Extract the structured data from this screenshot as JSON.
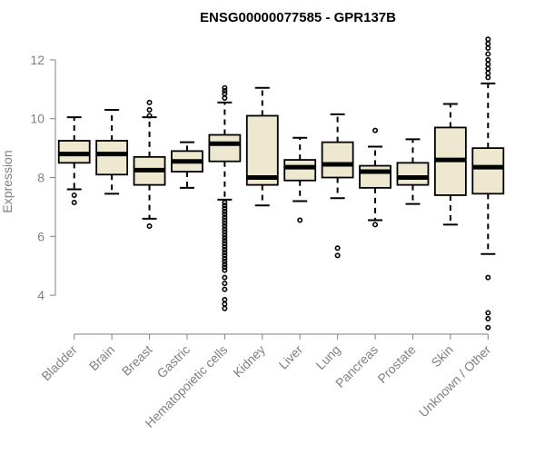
{
  "chart_data": {
    "type": "boxplot",
    "title": "ENSG00000077585 - GPR137B",
    "xlabel": "",
    "ylabel": "Expression",
    "ylim": [
      2.8,
      12.8
    ],
    "yticks": [
      4,
      6,
      8,
      10,
      12
    ],
    "box_fill": "#efe8d0",
    "box_stroke": "#000000",
    "categories": [
      "Bladder",
      "Brain",
      "Breast",
      "Gastric",
      "Hematopoietic cells",
      "Kidney",
      "Liver",
      "Lung",
      "Pancreas",
      "Prostate",
      "Skin",
      "Unknown / Other"
    ],
    "boxes": [
      {
        "q1": 8.5,
        "median": 8.8,
        "q3": 9.25,
        "whisker_low": 7.6,
        "whisker_high": 10.05,
        "outliers": [
          7.4,
          7.15
        ]
      },
      {
        "q1": 8.1,
        "median": 8.8,
        "q3": 9.25,
        "whisker_low": 7.45,
        "whisker_high": 10.3,
        "outliers": []
      },
      {
        "q1": 7.75,
        "median": 8.25,
        "q3": 8.7,
        "whisker_low": 6.6,
        "whisker_high": 10.05,
        "outliers": [
          10.55,
          10.3,
          10.1,
          6.35
        ]
      },
      {
        "q1": 8.2,
        "median": 8.55,
        "q3": 8.9,
        "whisker_low": 7.65,
        "whisker_high": 9.2,
        "outliers": []
      },
      {
        "q1": 8.55,
        "median": 9.15,
        "q3": 9.45,
        "whisker_low": 7.25,
        "whisker_high": 10.55,
        "outliers": [
          11.05,
          10.95,
          10.85,
          10.7,
          7.15,
          7.05,
          6.95,
          6.85,
          6.75,
          6.65,
          6.55,
          6.45,
          6.35,
          6.25,
          6.15,
          6.05,
          5.95,
          5.85,
          5.75,
          5.65,
          5.55,
          5.45,
          5.35,
          5.25,
          5.15,
          5.05,
          4.95,
          4.85,
          4.6,
          4.4,
          4.2,
          3.85,
          3.7,
          3.55
        ]
      },
      {
        "q1": 7.75,
        "median": 8.0,
        "q3": 10.1,
        "whisker_low": 7.05,
        "whisker_high": 11.05,
        "outliers": []
      },
      {
        "q1": 7.9,
        "median": 8.35,
        "q3": 8.6,
        "whisker_low": 7.2,
        "whisker_high": 9.35,
        "outliers": [
          6.55
        ]
      },
      {
        "q1": 8.0,
        "median": 8.45,
        "q3": 9.2,
        "whisker_low": 7.3,
        "whisker_high": 10.15,
        "outliers": [
          5.6,
          5.35
        ]
      },
      {
        "q1": 7.65,
        "median": 8.2,
        "q3": 8.4,
        "whisker_low": 6.55,
        "whisker_high": 9.05,
        "outliers": [
          9.6,
          6.4
        ]
      },
      {
        "q1": 7.75,
        "median": 8.0,
        "q3": 8.5,
        "whisker_low": 7.1,
        "whisker_high": 9.3,
        "outliers": []
      },
      {
        "q1": 7.4,
        "median": 8.6,
        "q3": 9.7,
        "whisker_low": 6.4,
        "whisker_high": 10.5,
        "outliers": []
      },
      {
        "q1": 7.45,
        "median": 8.35,
        "q3": 9.0,
        "whisker_low": 5.4,
        "whisker_high": 11.2,
        "outliers": [
          12.7,
          12.55,
          12.4,
          12.2,
          12.0,
          11.85,
          11.7,
          11.55,
          11.4,
          4.6,
          3.4,
          3.2,
          2.9
        ]
      }
    ]
  }
}
